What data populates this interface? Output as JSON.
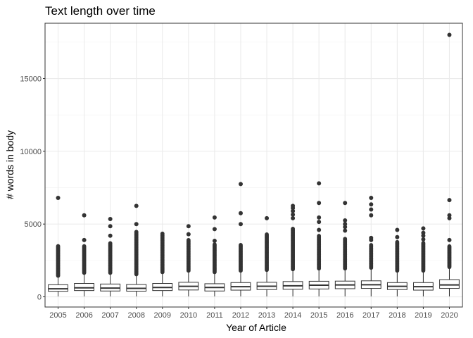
{
  "chart_data": {
    "type": "boxplot",
    "title": "Text length over time",
    "xlabel": "Year of Article",
    "ylabel": "# words in body",
    "categories": [
      "2005",
      "2006",
      "2007",
      "2008",
      "2009",
      "2010",
      "2011",
      "2012",
      "2013",
      "2014",
      "2015",
      "2016",
      "2017",
      "2018",
      "2019",
      "2020"
    ],
    "ylim": [
      -700,
      18800
    ],
    "yticks": [
      0,
      5000,
      10000,
      15000
    ],
    "ytick_labels": [
      "0",
      "5000",
      "10000",
      "15000"
    ],
    "grid": true,
    "legend": "none",
    "colors": {
      "box_fill": "#ffffff",
      "stroke": "#333333",
      "grid": "#ebebeb",
      "panel_border": "#333333",
      "point": "#333333"
    },
    "boxes": [
      {
        "year": "2005",
        "whisker_low": 30,
        "q1": 380,
        "median": 550,
        "q3": 830,
        "whisker_high": 1400
      },
      {
        "year": "2006",
        "whisker_low": 30,
        "q1": 430,
        "median": 620,
        "q3": 920,
        "whisker_high": 1600
      },
      {
        "year": "2007",
        "whisker_low": 30,
        "q1": 400,
        "median": 600,
        "q3": 880,
        "whisker_high": 1600
      },
      {
        "year": "2008",
        "whisker_low": 30,
        "q1": 390,
        "median": 580,
        "q3": 850,
        "whisker_high": 1500
      },
      {
        "year": "2009",
        "whisker_low": 30,
        "q1": 430,
        "median": 640,
        "q3": 920,
        "whisker_high": 1650
      },
      {
        "year": "2010",
        "whisker_low": 30,
        "q1": 470,
        "median": 720,
        "q3": 1000,
        "whisker_high": 1750
      },
      {
        "year": "2011",
        "whisker_low": 30,
        "q1": 400,
        "median": 640,
        "q3": 900,
        "whisker_high": 1650
      },
      {
        "year": "2012",
        "whisker_low": 30,
        "q1": 460,
        "median": 700,
        "q3": 980,
        "whisker_high": 1750
      },
      {
        "year": "2013",
        "whisker_low": 30,
        "q1": 500,
        "median": 730,
        "q3": 1000,
        "whisker_high": 1800
      },
      {
        "year": "2014",
        "whisker_low": 30,
        "q1": 520,
        "median": 760,
        "q3": 1050,
        "whisker_high": 1850
      },
      {
        "year": "2015",
        "whisker_low": 30,
        "q1": 540,
        "median": 800,
        "q3": 1070,
        "whisker_high": 1900
      },
      {
        "year": "2016",
        "whisker_low": 30,
        "q1": 560,
        "median": 820,
        "q3": 1080,
        "whisker_high": 1900
      },
      {
        "year": "2017",
        "whisker_low": 30,
        "q1": 580,
        "median": 830,
        "q3": 1100,
        "whisker_high": 1950
      },
      {
        "year": "2018",
        "whisker_low": 30,
        "q1": 500,
        "median": 720,
        "q3": 980,
        "whisker_high": 1750
      },
      {
        "year": "2019",
        "whisker_low": 30,
        "q1": 460,
        "median": 700,
        "q3": 980,
        "whisker_high": 1750
      },
      {
        "year": "2020",
        "whisker_low": 30,
        "q1": 580,
        "median": 820,
        "q3": 1180,
        "whisker_high": 2000
      }
    ],
    "outliers": [
      {
        "year": "2005",
        "dense_from": 1450,
        "dense_to": 3500,
        "values": [
          6800
        ]
      },
      {
        "year": "2006",
        "dense_from": 1650,
        "dense_to": 3500,
        "values": [
          3900,
          5600
        ]
      },
      {
        "year": "2007",
        "dense_from": 1650,
        "dense_to": 3700,
        "values": [
          4200,
          4850,
          5350
        ]
      },
      {
        "year": "2008",
        "dense_from": 1550,
        "dense_to": 4500,
        "values": [
          5000,
          6250
        ]
      },
      {
        "year": "2009",
        "dense_from": 1700,
        "dense_to": 4350,
        "values": []
      },
      {
        "year": "2010",
        "dense_from": 1800,
        "dense_to": 3900,
        "values": [
          4300,
          4850
        ]
      },
      {
        "year": "2011",
        "dense_from": 1700,
        "dense_to": 3600,
        "values": [
          3850,
          4650,
          5450
        ]
      },
      {
        "year": "2012",
        "dense_from": 1800,
        "dense_to": 3600,
        "values": [
          5000,
          5750,
          7750
        ]
      },
      {
        "year": "2013",
        "dense_from": 1850,
        "dense_to": 4300,
        "values": [
          5400
        ]
      },
      {
        "year": "2014",
        "dense_from": 1900,
        "dense_to": 4700,
        "values": [
          5400,
          5650,
          5900,
          6100,
          6250
        ]
      },
      {
        "year": "2015",
        "dense_from": 1950,
        "dense_to": 4200,
        "values": [
          4600,
          5150,
          5450,
          6450,
          7800
        ]
      },
      {
        "year": "2016",
        "dense_from": 1950,
        "dense_to": 4000,
        "values": [
          4550,
          4800,
          5000,
          5250,
          6450
        ]
      },
      {
        "year": "2017",
        "dense_from": 2000,
        "dense_to": 3600,
        "values": [
          3900,
          4050,
          5600,
          6000,
          6350,
          6800
        ]
      },
      {
        "year": "2018",
        "dense_from": 1800,
        "dense_to": 3800,
        "values": [
          4100,
          4600
        ]
      },
      {
        "year": "2019",
        "dense_from": 1800,
        "dense_to": 3700,
        "values": [
          3950,
          4200,
          4400,
          4700
        ]
      },
      {
        "year": "2020",
        "dense_from": 2050,
        "dense_to": 3500,
        "values": [
          3900,
          5400,
          5600,
          6650,
          18000
        ]
      }
    ]
  }
}
